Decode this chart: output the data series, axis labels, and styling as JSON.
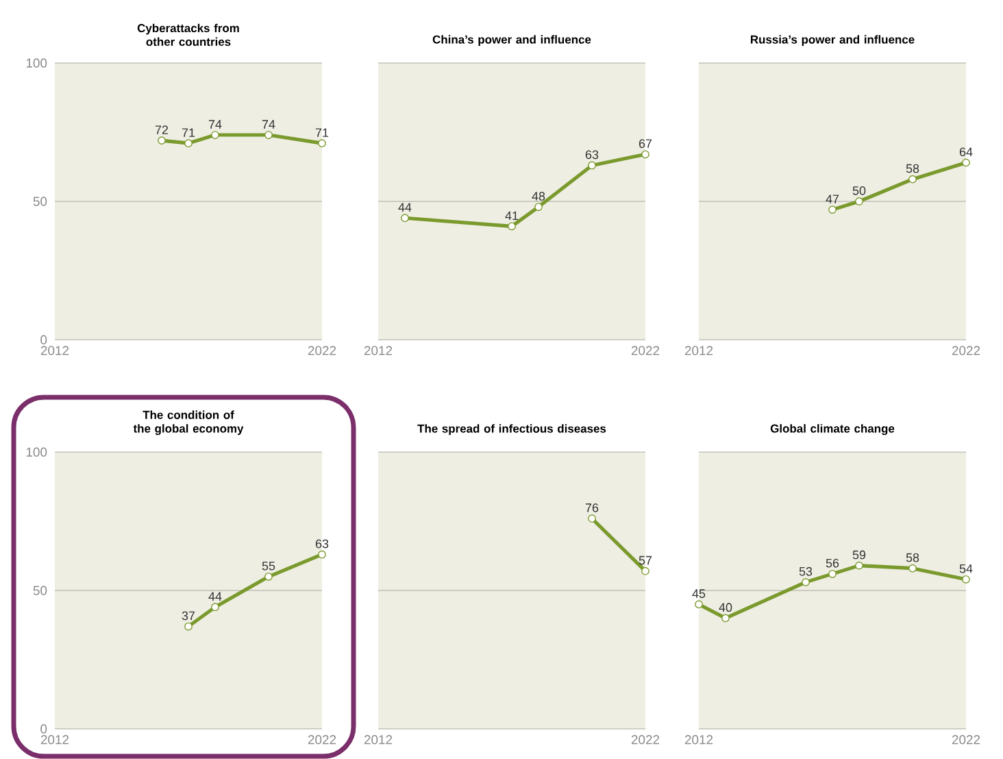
{
  "chart_data": [
    {
      "type": "line",
      "title": "Cyberattacks from other countries",
      "x": [
        2016,
        2017,
        2018,
        2020,
        2022
      ],
      "values": [
        72,
        71,
        74,
        74,
        71
      ],
      "color": "#7b9a2d",
      "xlim": [
        2012,
        2022
      ],
      "xticks": [
        2012,
        2022
      ],
      "ylim": [
        0,
        100
      ],
      "yticks": [
        0,
        50,
        100
      ],
      "data_labels": true,
      "marker": "circle",
      "grid": "y"
    },
    {
      "type": "line",
      "title": "China’s power and influence",
      "x": [
        2013,
        2017,
        2018,
        2020,
        2022
      ],
      "values": [
        44,
        41,
        48,
        63,
        67
      ],
      "color": "#7b9a2d",
      "xlim": [
        2012,
        2022
      ],
      "xticks": [
        2012,
        2022
      ],
      "ylim": [
        0,
        100
      ],
      "yticks": [
        0,
        50,
        100
      ],
      "data_labels": true,
      "marker": "circle",
      "grid": "y",
      "tick_labels": "x"
    },
    {
      "type": "line",
      "title": "Russia’s power and influence",
      "x": [
        2017,
        2018,
        2020,
        2022
      ],
      "values": [
        47,
        50,
        58,
        64
      ],
      "color": "#7b9a2d",
      "xlim": [
        2012,
        2022
      ],
      "xticks": [
        2012,
        2022
      ],
      "ylim": [
        0,
        100
      ],
      "yticks": [
        0,
        50,
        100
      ],
      "data_labels": true,
      "marker": "circle",
      "grid": "y",
      "tick_labels": "x"
    },
    {
      "type": "line",
      "title": "The condition of the global economy",
      "x": [
        2017,
        2018,
        2020,
        2022
      ],
      "values": [
        37,
        44,
        55,
        63
      ],
      "color": "#7b9a2d",
      "xlim": [
        2012,
        2022
      ],
      "xticks": [
        2012,
        2022
      ],
      "ylim": [
        0,
        100
      ],
      "yticks": [
        0,
        50,
        100
      ],
      "data_labels": true,
      "marker": "circle",
      "grid": "y"
    },
    {
      "type": "line",
      "title": "The spread of infectious diseases",
      "x": [
        2020,
        2022
      ],
      "values": [
        76,
        57
      ],
      "color": "#7b9a2d",
      "xlim": [
        2012,
        2022
      ],
      "xticks": [
        2012,
        2022
      ],
      "ylim": [
        0,
        100
      ],
      "yticks": [
        0,
        50,
        100
      ],
      "data_labels": true,
      "marker": "circle",
      "grid": "y",
      "tick_labels": "x"
    },
    {
      "type": "line",
      "title": "Global climate change",
      "x": [
        2012,
        2013,
        2016,
        2017,
        2018,
        2020,
        2022
      ],
      "values": [
        45,
        40,
        53,
        56,
        59,
        58,
        54
      ],
      "color": "#7b9a2d",
      "xlim": [
        2012,
        2022
      ],
      "xticks": [
        2012,
        2022
      ],
      "ylim": [
        0,
        100
      ],
      "yticks": [
        0,
        50,
        100
      ],
      "data_labels": true,
      "marker": "circle",
      "grid": "y",
      "tick_labels": "x"
    }
  ]
}
